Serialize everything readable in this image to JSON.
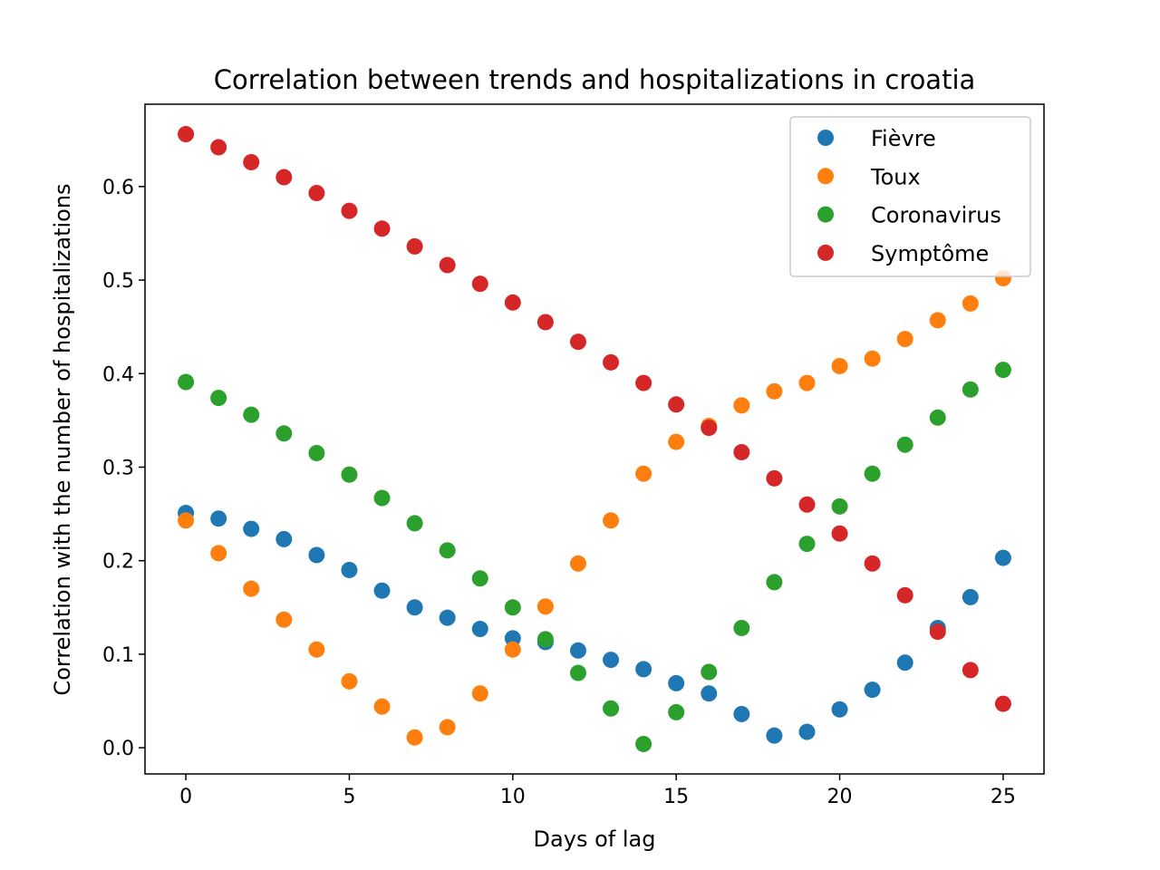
{
  "chart_data": {
    "type": "scatter",
    "title": "Correlation between trends and hospitalizations in croatia",
    "xlabel": "Days of lag",
    "ylabel": "Correlation with the number of hospitalizations",
    "xlim": [
      -1.25,
      26.25
    ],
    "ylim": [
      -0.028,
      0.688
    ],
    "xticks": [
      0,
      5,
      10,
      15,
      20,
      25
    ],
    "xtick_labels": [
      "0",
      "5",
      "10",
      "15",
      "20",
      "25"
    ],
    "yticks": [
      0.0,
      0.1,
      0.2,
      0.3,
      0.4,
      0.5,
      0.6
    ],
    "ytick_labels": [
      "0.0",
      "0.1",
      "0.2",
      "0.3",
      "0.4",
      "0.5",
      "0.6"
    ],
    "grid": false,
    "legend_position": "top-right",
    "x": [
      0,
      1,
      2,
      3,
      4,
      5,
      6,
      7,
      8,
      9,
      10,
      11,
      12,
      13,
      14,
      15,
      16,
      17,
      18,
      19,
      20,
      21,
      22,
      23,
      24,
      25
    ],
    "series": [
      {
        "name": "Fièvre",
        "color": "#1f77b4",
        "values": [
          0.251,
          0.245,
          0.234,
          0.223,
          0.206,
          0.19,
          0.168,
          0.15,
          0.139,
          0.127,
          0.117,
          0.113,
          0.104,
          0.094,
          0.084,
          0.069,
          0.058,
          0.036,
          0.013,
          0.017,
          0.041,
          0.062,
          0.091,
          0.128,
          0.161,
          0.203
        ]
      },
      {
        "name": "Toux",
        "color": "#ff7f0e",
        "values": [
          0.243,
          0.208,
          0.17,
          0.137,
          0.105,
          0.071,
          0.044,
          0.011,
          0.022,
          0.058,
          0.105,
          0.151,
          0.197,
          0.243,
          0.293,
          0.327,
          0.344,
          0.366,
          0.381,
          0.39,
          0.408,
          0.416,
          0.437,
          0.457,
          0.475,
          0.502
        ]
      },
      {
        "name": "Coronavirus",
        "color": "#2ca02c",
        "values": [
          0.391,
          0.374,
          0.356,
          0.336,
          0.315,
          0.292,
          0.267,
          0.24,
          0.211,
          0.181,
          0.15,
          0.116,
          0.08,
          0.042,
          0.004,
          0.038,
          0.081,
          0.128,
          0.177,
          0.218,
          0.258,
          0.293,
          0.324,
          0.353,
          0.383,
          0.404
        ]
      },
      {
        "name": "Symptôme",
        "color": "#d62728",
        "values": [
          0.656,
          0.642,
          0.626,
          0.61,
          0.593,
          0.574,
          0.555,
          0.536,
          0.516,
          0.496,
          0.476,
          0.455,
          0.434,
          0.412,
          0.39,
          0.367,
          0.342,
          0.316,
          0.288,
          0.26,
          0.229,
          0.197,
          0.163,
          0.124,
          0.083,
          0.047
        ]
      }
    ]
  }
}
